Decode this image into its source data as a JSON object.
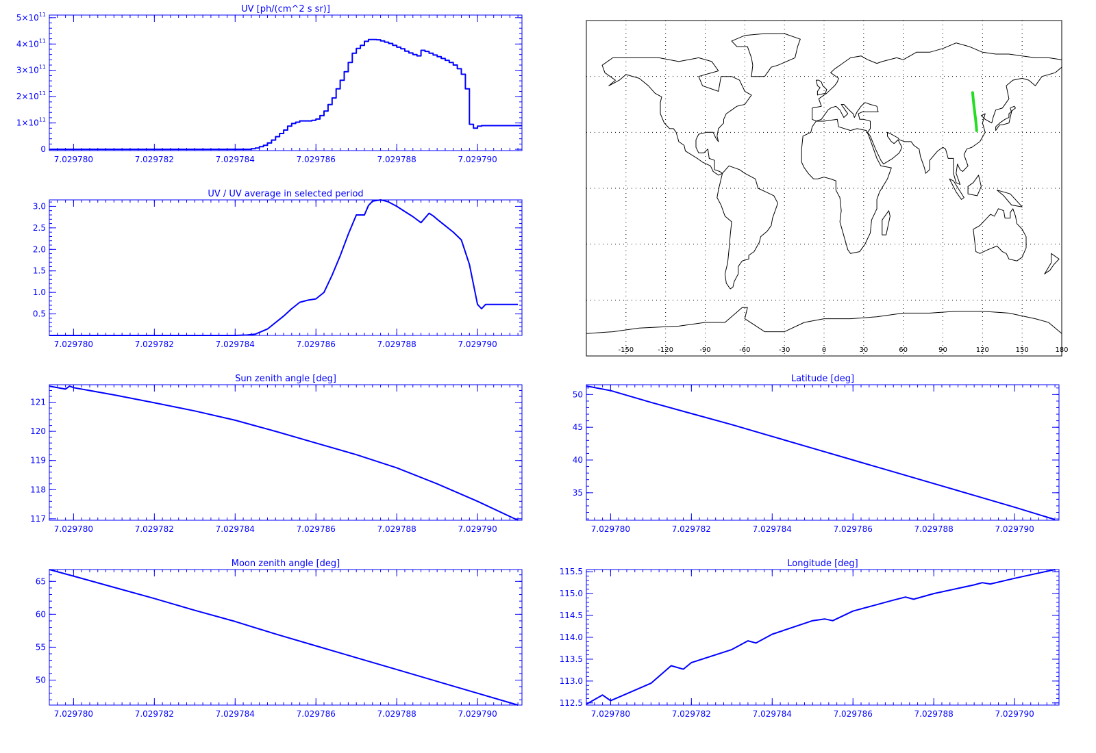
{
  "colors": {
    "plot": "#0000ff",
    "map_frame": "#000000",
    "coast": "#000000",
    "track": "#22dd22",
    "background": "#ffffff"
  },
  "chart_data": [
    {
      "id": "uv",
      "type": "line",
      "step": true,
      "title": "UV [ph/(cm^2 s sr)]",
      "xlabel": "",
      "ylabel": "",
      "xlim": [
        7.0297794,
        7.0297911
      ],
      "ylim": [
        -5000000000.0,
        510000000000.0
      ],
      "xticks": [
        7.02978,
        7.029782,
        7.029784,
        7.029786,
        7.029788,
        7.02979
      ],
      "xtick_labels": [
        "7.029780",
        "7.029782",
        "7.029784",
        "7.029786",
        "7.029788",
        "7.029790"
      ],
      "yticks": [
        0,
        100000000000.0,
        200000000000.0,
        300000000000.0,
        400000000000.0,
        500000000000.0
      ],
      "ytick_labels": [
        {
          "base": "0",
          "exp": ""
        },
        {
          "base": "1×10",
          "exp": "11"
        },
        {
          "base": "2×10",
          "exp": "11"
        },
        {
          "base": "3×10",
          "exp": "11"
        },
        {
          "base": "4×10",
          "exp": "11"
        },
        {
          "base": "5×10",
          "exp": "11"
        }
      ],
      "x": [
        7.0297794,
        7.02978,
        7.029781,
        7.029782,
        7.029783,
        7.029784,
        7.0297842,
        7.0297844,
        7.0297845,
        7.0297846,
        7.0297847,
        7.0297848,
        7.0297849,
        7.029785,
        7.0297851,
        7.0297852,
        7.0297853,
        7.0297854,
        7.0297855,
        7.0297856,
        7.0297857,
        7.0297858,
        7.0297859,
        7.029786,
        7.0297861,
        7.0297862,
        7.0297863,
        7.0297864,
        7.0297865,
        7.0297866,
        7.0297867,
        7.0297868,
        7.0297869,
        7.029787,
        7.0297871,
        7.0297872,
        7.0297873,
        7.0297874,
        7.0297875,
        7.0297876,
        7.0297877,
        7.0297878,
        7.0297879,
        7.029788,
        7.0297881,
        7.0297882,
        7.0297883,
        7.0297884,
        7.0297885,
        7.0297886,
        7.0297887,
        7.0297888,
        7.0297889,
        7.029789,
        7.0297891,
        7.0297892,
        7.0297893,
        7.0297894,
        7.0297895,
        7.0297896,
        7.0297897,
        7.0297898,
        7.0297899,
        7.02979,
        7.0297901,
        7.0297902,
        7.0297903,
        7.0297904,
        7.029791
      ],
      "series": [
        {
          "values": [
            0,
            0,
            0,
            0,
            0,
            0,
            0,
            2000000000.0,
            5000000000.0,
            10000000000.0,
            15000000000.0,
            24000000000.0,
            35000000000.0,
            48000000000.0,
            60000000000.0,
            73000000000.0,
            88000000000.0,
            98000000000.0,
            103000000000.0,
            108000000000.0,
            108000000000.0,
            108000000000.0,
            110000000000.0,
            115000000000.0,
            128000000000.0,
            145000000000.0,
            170000000000.0,
            195000000000.0,
            230000000000.0,
            262000000000.0,
            295000000000.0,
            330000000000.0,
            365000000000.0,
            383000000000.0,
            395000000000.0,
            410000000000.0,
            417000000000.0,
            417000000000.0,
            416000000000.0,
            412000000000.0,
            407000000000.0,
            402000000000.0,
            395000000000.0,
            388000000000.0,
            382000000000.0,
            373000000000.0,
            366000000000.0,
            360000000000.0,
            355000000000.0,
            376000000000.0,
            372000000000.0,
            365000000000.0,
            358000000000.0,
            352000000000.0,
            345000000000.0,
            338000000000.0,
            330000000000.0,
            320000000000.0,
            306000000000.0,
            285000000000.0,
            230000000000.0,
            95000000000.0,
            80000000000.0,
            88000000000.0,
            90000000000.0,
            90000000000.0,
            90000000000.0,
            90000000000.0,
            90000000000.0
          ]
        }
      ]
    },
    {
      "id": "uv-ratio",
      "type": "line",
      "title": "UV / UV average in selected period",
      "xlabel": "",
      "ylabel": "",
      "xlim": [
        7.0297794,
        7.0297911
      ],
      "ylim": [
        0,
        3.15
      ],
      "xticks": [
        7.02978,
        7.029782,
        7.029784,
        7.029786,
        7.029788,
        7.02979
      ],
      "xtick_labels": [
        "7.029780",
        "7.029782",
        "7.029784",
        "7.029786",
        "7.029788",
        "7.029790"
      ],
      "yticks": [
        0.5,
        1.0,
        1.5,
        2.0,
        2.5,
        3.0
      ],
      "ytick_labels": [
        "0.5",
        "1.0",
        "1.5",
        "2.0",
        "2.5",
        "3.0"
      ],
      "x": [
        7.0297794,
        7.029784,
        7.0297843,
        7.0297845,
        7.0297848,
        7.0297852,
        7.0297854,
        7.0297856,
        7.0297858,
        7.029786,
        7.0297862,
        7.0297864,
        7.0297866,
        7.0297868,
        7.029787,
        7.0297872,
        7.0297873,
        7.0297874,
        7.0297876,
        7.0297877,
        7.0297878,
        7.029788,
        7.0297882,
        7.0297884,
        7.0297886,
        7.0297888,
        7.0297889,
        7.029789,
        7.0297892,
        7.0297894,
        7.0297896,
        7.0297898,
        7.02979,
        7.0297901,
        7.0297902,
        7.0297903,
        7.0297905,
        7.029791
      ],
      "series": [
        {
          "values": [
            0,
            0,
            0.01,
            0.03,
            0.15,
            0.45,
            0.62,
            0.77,
            0.82,
            0.85,
            1.0,
            1.4,
            1.85,
            2.35,
            2.8,
            2.8,
            3.02,
            3.12,
            3.15,
            3.13,
            3.1,
            3.0,
            2.88,
            2.76,
            2.62,
            2.84,
            2.78,
            2.7,
            2.55,
            2.4,
            2.22,
            1.65,
            0.72,
            0.62,
            0.72,
            0.72,
            0.72,
            0.72
          ]
        }
      ]
    },
    {
      "id": "sun-zenith",
      "type": "line",
      "title": "Sun zenith angle [deg]",
      "xlabel": "",
      "ylabel": "",
      "xlim": [
        7.0297794,
        7.0297911
      ],
      "ylim": [
        116.95,
        121.6
      ],
      "xticks": [
        7.02978,
        7.029782,
        7.029784,
        7.029786,
        7.029788,
        7.02979
      ],
      "xtick_labels": [
        "7.029780",
        "7.029782",
        "7.029784",
        "7.029786",
        "7.029788",
        "7.029790"
      ],
      "yticks": [
        117,
        118,
        119,
        120,
        121
      ],
      "ytick_labels": [
        "117",
        "118",
        "119",
        "120",
        "121"
      ],
      "x": [
        7.0297794,
        7.0297798,
        7.0297799,
        7.02978,
        7.029781,
        7.029782,
        7.029783,
        7.029784,
        7.029785,
        7.029786,
        7.029787,
        7.029788,
        7.029789,
        7.02979,
        7.029791
      ],
      "series": [
        {
          "values": [
            121.55,
            121.45,
            121.55,
            121.5,
            121.25,
            120.98,
            120.7,
            120.38,
            120.0,
            119.6,
            119.2,
            118.75,
            118.2,
            117.6,
            116.95
          ]
        }
      ]
    },
    {
      "id": "moon-zenith",
      "type": "line",
      "title": "Moon zenith angle [deg]",
      "xlabel": "",
      "ylabel": "",
      "xlim": [
        7.0297794,
        7.0297911
      ],
      "ylim": [
        46.2,
        66.8
      ],
      "xticks": [
        7.02978,
        7.029782,
        7.029784,
        7.029786,
        7.029788,
        7.02979
      ],
      "xtick_labels": [
        "7.029780",
        "7.029782",
        "7.029784",
        "7.029786",
        "7.029788",
        "7.029790"
      ],
      "yticks": [
        50,
        55,
        60,
        65
      ],
      "ytick_labels": [
        "50",
        "55",
        "60",
        "65"
      ],
      "x": [
        7.0297794,
        7.02978,
        7.029781,
        7.029782,
        7.029783,
        7.029784,
        7.029785,
        7.029786,
        7.029787,
        7.029788,
        7.029789,
        7.02979,
        7.029791
      ],
      "series": [
        {
          "values": [
            66.8,
            65.8,
            64.1,
            62.4,
            60.6,
            58.9,
            57.0,
            55.2,
            53.4,
            51.6,
            49.8,
            48.0,
            46.2
          ]
        }
      ]
    },
    {
      "id": "latitude",
      "type": "line",
      "title": "Latitude [deg]",
      "xlabel": "",
      "ylabel": "",
      "xlim": [
        7.0297794,
        7.0297911
      ],
      "ylim": [
        30.8,
        51.5
      ],
      "xticks": [
        7.02978,
        7.029782,
        7.029784,
        7.029786,
        7.029788,
        7.02979
      ],
      "xtick_labels": [
        "7.029780",
        "7.029782",
        "7.029784",
        "7.029786",
        "7.029788",
        "7.029790"
      ],
      "yticks": [
        35,
        40,
        45,
        50
      ],
      "ytick_labels": [
        "35",
        "40",
        "45",
        "50"
      ],
      "x": [
        7.0297794,
        7.02978,
        7.029781,
        7.029782,
        7.029783,
        7.029784,
        7.029785,
        7.029786,
        7.029787,
        7.029788,
        7.029789,
        7.02979,
        7.029791
      ],
      "series": [
        {
          "values": [
            51.3,
            50.6,
            48.8,
            47.1,
            45.4,
            43.6,
            41.8,
            40.0,
            38.2,
            36.4,
            34.6,
            32.8,
            30.9
          ]
        }
      ]
    },
    {
      "id": "longitude",
      "type": "line",
      "title": "Longitude [deg]",
      "xlabel": "",
      "ylabel": "",
      "xlim": [
        7.0297794,
        7.0297911
      ],
      "ylim": [
        112.45,
        115.55
      ],
      "xticks": [
        7.02978,
        7.029782,
        7.029784,
        7.029786,
        7.029788,
        7.02979
      ],
      "xtick_labels": [
        "7.029780",
        "7.029782",
        "7.029784",
        "7.029786",
        "7.029788",
        "7.029790"
      ],
      "yticks": [
        112.5,
        113.0,
        113.5,
        114.0,
        114.5,
        115.0,
        115.5
      ],
      "ytick_labels": [
        "112.5",
        "113.0",
        "113.5",
        "114.0",
        "114.5",
        "115.0",
        "115.5"
      ],
      "x": [
        7.0297794,
        7.0297798,
        7.02978,
        7.029781,
        7.0297815,
        7.0297818,
        7.029782,
        7.029783,
        7.0297834,
        7.0297836,
        7.029784,
        7.029785,
        7.0297853,
        7.0297855,
        7.029786,
        7.029787,
        7.0297873,
        7.0297875,
        7.029788,
        7.029789,
        7.0297892,
        7.0297894,
        7.02979,
        7.029791
      ],
      "series": [
        {
          "values": [
            112.47,
            112.68,
            112.55,
            112.95,
            113.35,
            113.27,
            113.42,
            113.72,
            113.92,
            113.87,
            114.07,
            114.38,
            114.42,
            114.38,
            114.6,
            114.85,
            114.92,
            114.87,
            115.0,
            115.2,
            115.25,
            115.22,
            115.35,
            115.55
          ]
        }
      ]
    }
  ],
  "map": {
    "type": "world-map",
    "projection": "equirectangular",
    "lon_range": [
      -180,
      180
    ],
    "lat_range": [
      -90,
      90
    ],
    "gridlines": "dotted",
    "lon_grid": [
      -150,
      -120,
      -90,
      -60,
      -30,
      0,
      30,
      60,
      90,
      120,
      150
    ],
    "lat_grid": [
      -60,
      -30,
      0,
      30,
      60
    ],
    "lon_ticks": [
      -150,
      -120,
      -90,
      -60,
      -30,
      0,
      30,
      60,
      90,
      120,
      150,
      180
    ],
    "lon_tick_labels": [
      "-150",
      "-120",
      "-90",
      "-60",
      "-30",
      "0",
      "30",
      "60",
      "90",
      "120",
      "150",
      "180"
    ],
    "track": {
      "lon": [
        112.5,
        112.9,
        113.3,
        113.8,
        114.3,
        114.8,
        115.2,
        115.55
      ],
      "lat": [
        51.3,
        48.5,
        45.6,
        42.6,
        39.7,
        36.8,
        33.9,
        30.9
      ]
    }
  }
}
